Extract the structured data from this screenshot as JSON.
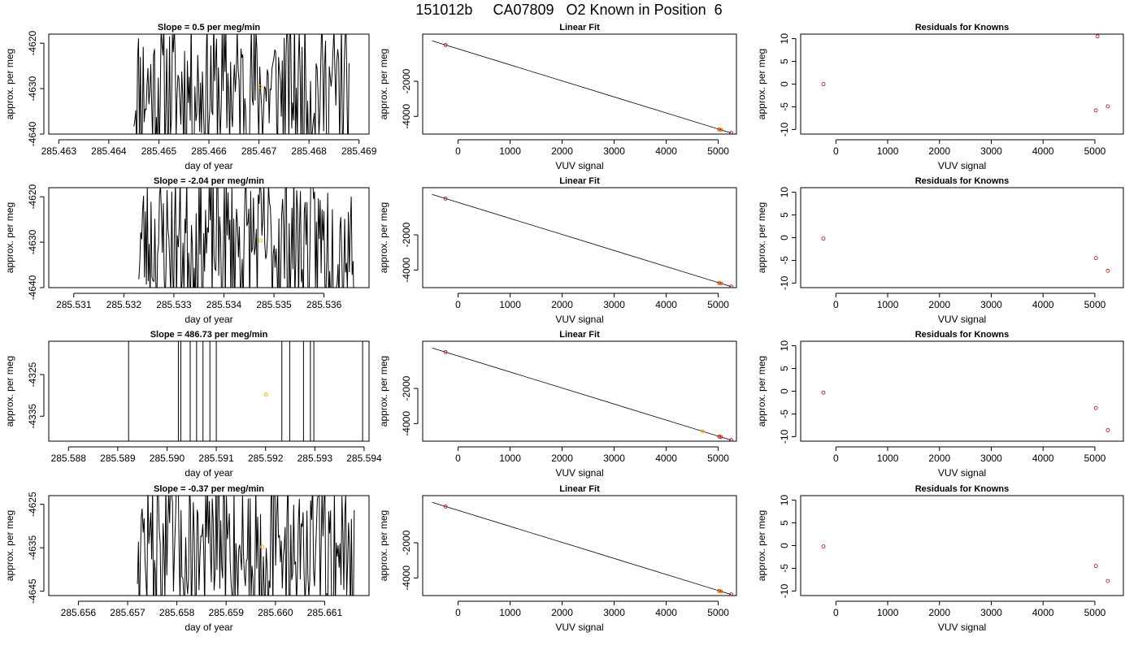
{
  "page": {
    "title": "151012b     CA07809   O2 Known in Position  6"
  },
  "colors": {
    "trace": "#000000",
    "highlight": "#ffa500",
    "known_point": "#cc0000",
    "frame": "#000000"
  },
  "chart_data": [
    {
      "type": "line",
      "panel": "time-series",
      "row": 1,
      "title": "Slope =  0.5  per meg/min",
      "xlabel": "day of year",
      "ylabel": "approx. per meg",
      "xlim": [
        285.4628,
        285.4692
      ],
      "ylim": [
        -4640,
        -4618
      ],
      "xticks": [
        285.463,
        285.464,
        285.465,
        285.466,
        285.467,
        285.468,
        285.469
      ],
      "xtick_labels": [
        "285.463",
        "285.464",
        "285.465",
        "285.466",
        "285.467",
        "285.468",
        "285.469"
      ],
      "yticks": [
        -4640,
        -4630,
        -4620
      ],
      "ytick_labels": [
        "-4640",
        "-4630",
        "-4620"
      ],
      "trace": {
        "x_start": 285.4645,
        "x_end": 285.4688,
        "n": 230,
        "y_center": -4630,
        "amplitude": 16,
        "seed": 11,
        "gap": null
      },
      "highlight_points": [
        {
          "x": 285.46703,
          "y": -4629.5
        }
      ],
      "grid": false,
      "legend": "none"
    },
    {
      "type": "line",
      "panel": "linear-fit",
      "row": 1,
      "title": "Linear Fit",
      "xlabel": "VUV signal",
      "ylabel": "approx. per meg",
      "xlim": [
        -680,
        5350
      ],
      "ylim": [
        -5000,
        680
      ],
      "xticks": [
        0,
        1000,
        2000,
        3000,
        4000,
        5000
      ],
      "xtick_labels": [
        "0",
        "1000",
        "2000",
        "3000",
        "4000",
        "5000"
      ],
      "yticks": [
        -4000,
        -2000
      ],
      "ytick_labels": [
        "-4000",
        "-2000"
      ],
      "fit_line": {
        "x": [
          -500,
          5250
        ],
        "y": [
          300,
          -4940
        ]
      },
      "known_points": [
        {
          "x": -240,
          "y": 60
        },
        {
          "x": 5020,
          "y": -4740
        },
        {
          "x": 5050,
          "y": -4760
        },
        {
          "x": 5250,
          "y": -4940
        }
      ],
      "highlight_points": [
        {
          "x": 5040,
          "y": -4750
        }
      ],
      "grid": false,
      "legend": "none"
    },
    {
      "type": "scatter",
      "panel": "residuals",
      "row": 1,
      "title": "Residuals for Knowns",
      "xlabel": "VUV signal",
      "ylabel": "approx. per meg",
      "xlim": [
        -680,
        5550
      ],
      "ylim": [
        -11,
        11
      ],
      "xticks": [
        0,
        1000,
        2000,
        3000,
        4000,
        5000
      ],
      "xtick_labels": [
        "0",
        "1000",
        "2000",
        "3000",
        "4000",
        "5000"
      ],
      "yticks": [
        -10,
        -5,
        0,
        5,
        10
      ],
      "ytick_labels": [
        "-10",
        "-5",
        "0",
        "5",
        "10"
      ],
      "points": [
        {
          "x": -240,
          "y": 0
        },
        {
          "x": 5020,
          "y": -5.8
        },
        {
          "x": 5050,
          "y": 10.5
        },
        {
          "x": 5250,
          "y": -4.9
        }
      ],
      "grid": false,
      "legend": "none"
    },
    {
      "type": "line",
      "panel": "time-series",
      "row": 2,
      "title": "Slope =  -2.04  per meg/min",
      "xlabel": "day of year",
      "ylabel": "approx. per meg",
      "xlim": [
        285.5305,
        285.5369
      ],
      "ylim": [
        -4640,
        -4618
      ],
      "xticks": [
        285.531,
        285.532,
        285.533,
        285.534,
        285.535,
        285.536
      ],
      "xtick_labels": [
        "285.531",
        "285.532",
        "285.533",
        "285.534",
        "285.535",
        "285.536"
      ],
      "yticks": [
        -4640,
        -4630,
        -4620
      ],
      "ytick_labels": [
        "-4640",
        "-4630",
        "-4620"
      ],
      "trace": {
        "x_start": 285.5323,
        "x_end": 285.5366,
        "n": 230,
        "y_center": -4630,
        "amplitude": 16,
        "seed": 23,
        "gap": null
      },
      "highlight_points": [
        {
          "x": 285.53473,
          "y": -4629.6
        }
      ],
      "grid": false,
      "legend": "none"
    },
    {
      "type": "line",
      "panel": "linear-fit",
      "row": 2,
      "title": "Linear Fit",
      "xlabel": "VUV signal",
      "ylabel": "approx. per meg",
      "xlim": [
        -680,
        5350
      ],
      "ylim": [
        -5000,
        680
      ],
      "xticks": [
        0,
        1000,
        2000,
        3000,
        4000,
        5000
      ],
      "xtick_labels": [
        "0",
        "1000",
        "2000",
        "3000",
        "4000",
        "5000"
      ],
      "yticks": [
        -4000,
        -2000
      ],
      "ytick_labels": [
        "-4000",
        "-2000"
      ],
      "fit_line": {
        "x": [
          -500,
          5250
        ],
        "y": [
          300,
          -4940
        ]
      },
      "known_points": [
        {
          "x": -240,
          "y": 60
        },
        {
          "x": 5020,
          "y": -4740
        },
        {
          "x": 5050,
          "y": -4760
        },
        {
          "x": 5250,
          "y": -4940
        }
      ],
      "highlight_points": [
        {
          "x": 5040,
          "y": -4750
        }
      ],
      "grid": false,
      "legend": "none"
    },
    {
      "type": "scatter",
      "panel": "residuals",
      "row": 2,
      "title": "Residuals for Knowns",
      "xlabel": "VUV signal",
      "ylabel": "approx. per meg",
      "xlim": [
        -680,
        5550
      ],
      "ylim": [
        -11,
        11
      ],
      "xticks": [
        0,
        1000,
        2000,
        3000,
        4000,
        5000
      ],
      "xtick_labels": [
        "0",
        "1000",
        "2000",
        "3000",
        "4000",
        "5000"
      ],
      "yticks": [
        -10,
        -5,
        0,
        5,
        10
      ],
      "ytick_labels": [
        "-10",
        "-5",
        "0",
        "5",
        "10"
      ],
      "points": [
        {
          "x": -240,
          "y": -0.2
        },
        {
          "x": 5020,
          "y": -4.5
        },
        {
          "x": 5250,
          "y": -7.3
        }
      ],
      "grid": false,
      "legend": "none"
    },
    {
      "type": "line",
      "panel": "time-series",
      "row": 3,
      "title": "Slope =  486.73  per meg/min",
      "xlabel": "day of year",
      "ylabel": "approx. per meg",
      "xlim": [
        285.5876,
        285.5941
      ],
      "ylim": [
        -4341,
        -4317
      ],
      "xticks": [
        285.588,
        285.589,
        285.59,
        285.591,
        285.592,
        285.593,
        285.594
      ],
      "xtick_labels": [
        "285.588",
        "285.589",
        "285.590",
        "285.591",
        "285.592",
        "285.593",
        "285.594"
      ],
      "yticks": [
        -4335,
        -4325
      ],
      "ytick_labels": [
        "-4335",
        "-4325"
      ],
      "vlines": [
        285.58922,
        285.59023,
        285.59028,
        285.59047,
        285.5906,
        285.59073,
        285.59087,
        285.591,
        285.59233,
        285.59249,
        285.59277,
        285.59291,
        285.59298,
        285.59397
      ],
      "highlight_points": [
        {
          "x": 285.59201,
          "y": -4329.8
        }
      ],
      "grid": false,
      "legend": "none"
    },
    {
      "type": "line",
      "panel": "linear-fit",
      "row": 3,
      "title": "Linear Fit",
      "xlabel": "VUV signal",
      "ylabel": "approx. per meg",
      "xlim": [
        -680,
        5350
      ],
      "ylim": [
        -5000,
        680
      ],
      "xticks": [
        0,
        1000,
        2000,
        3000,
        4000,
        5000
      ],
      "xtick_labels": [
        "0",
        "1000",
        "2000",
        "3000",
        "4000",
        "5000"
      ],
      "yticks": [
        -4000,
        -2000
      ],
      "ytick_labels": [
        "-4000",
        "-2000"
      ],
      "fit_line": {
        "x": [
          -500,
          5250
        ],
        "y": [
          300,
          -4940
        ]
      },
      "known_points": [
        {
          "x": -240,
          "y": 60
        },
        {
          "x": 5020,
          "y": -4740
        },
        {
          "x": 5050,
          "y": -4760
        },
        {
          "x": 5250,
          "y": -4940
        }
      ],
      "highlight_points": [
        {
          "x": 4700,
          "y": -4440
        }
      ],
      "grid": false,
      "legend": "none"
    },
    {
      "type": "scatter",
      "panel": "residuals",
      "row": 3,
      "title": "Residuals for Knowns",
      "xlabel": "VUV signal",
      "ylabel": "approx. per meg",
      "xlim": [
        -680,
        5550
      ],
      "ylim": [
        -11,
        11
      ],
      "xticks": [
        0,
        1000,
        2000,
        3000,
        4000,
        5000
      ],
      "xtick_labels": [
        "0",
        "1000",
        "2000",
        "3000",
        "4000",
        "5000"
      ],
      "yticks": [
        -10,
        -5,
        0,
        5,
        10
      ],
      "ytick_labels": [
        "-10",
        "-5",
        "0",
        "5",
        "10"
      ],
      "points": [
        {
          "x": -240,
          "y": -0.3
        },
        {
          "x": 5020,
          "y": -3.7
        },
        {
          "x": 5250,
          "y": -8.6
        }
      ],
      "grid": false,
      "legend": "none"
    },
    {
      "type": "line",
      "panel": "time-series",
      "row": 4,
      "title": "Slope =  -0.37  per meg/min",
      "xlabel": "day of year",
      "ylabel": "approx. per meg",
      "xlim": [
        285.6554,
        285.6619
      ],
      "ylim": [
        -4646,
        -4623
      ],
      "xticks": [
        285.656,
        285.657,
        285.658,
        285.659,
        285.66,
        285.661
      ],
      "xtick_labels": [
        "285.656",
        "285.657",
        "285.658",
        "285.659",
        "285.660",
        "285.661"
      ],
      "yticks": [
        -4645,
        -4635,
        -4625
      ],
      "ytick_labels": [
        "-4645",
        "-4635",
        "-4625"
      ],
      "trace": {
        "x_start": 285.6572,
        "x_end": 285.6616,
        "n": 230,
        "y_center": -4635,
        "amplitude": 17,
        "seed": 47,
        "gap": null
      },
      "highlight_points": [
        {
          "x": 285.65973,
          "y": -4634.8
        }
      ],
      "grid": false,
      "legend": "none"
    },
    {
      "type": "line",
      "panel": "linear-fit",
      "row": 4,
      "title": "Linear Fit",
      "xlabel": "VUV signal",
      "ylabel": "approx. per meg",
      "xlim": [
        -680,
        5350
      ],
      "ylim": [
        -5000,
        680
      ],
      "xticks": [
        0,
        1000,
        2000,
        3000,
        4000,
        5000
      ],
      "xtick_labels": [
        "0",
        "1000",
        "2000",
        "3000",
        "4000",
        "5000"
      ],
      "yticks": [
        -4000,
        -2000
      ],
      "ytick_labels": [
        "-4000",
        "-2000"
      ],
      "fit_line": {
        "x": [
          -500,
          5250
        ],
        "y": [
          300,
          -4940
        ]
      },
      "known_points": [
        {
          "x": -240,
          "y": 60
        },
        {
          "x": 5020,
          "y": -4740
        },
        {
          "x": 5050,
          "y": -4760
        },
        {
          "x": 5250,
          "y": -4940
        }
      ],
      "highlight_points": [
        {
          "x": 5040,
          "y": -4750
        }
      ],
      "grid": false,
      "legend": "none"
    },
    {
      "type": "scatter",
      "panel": "residuals",
      "row": 4,
      "title": "Residuals for Knowns",
      "xlabel": "VUV signal",
      "ylabel": "approx. per meg",
      "xlim": [
        -680,
        5550
      ],
      "ylim": [
        -11,
        11
      ],
      "xticks": [
        0,
        1000,
        2000,
        3000,
        4000,
        5000
      ],
      "xtick_labels": [
        "0",
        "1000",
        "2000",
        "3000",
        "4000",
        "5000"
      ],
      "yticks": [
        -10,
        -5,
        0,
        5,
        10
      ],
      "ytick_labels": [
        "-10",
        "-5",
        "0",
        "5",
        "10"
      ],
      "points": [
        {
          "x": -240,
          "y": -0.2
        },
        {
          "x": 5020,
          "y": -4.5
        },
        {
          "x": 5250,
          "y": -7.8
        }
      ],
      "grid": false,
      "legend": "none"
    }
  ]
}
